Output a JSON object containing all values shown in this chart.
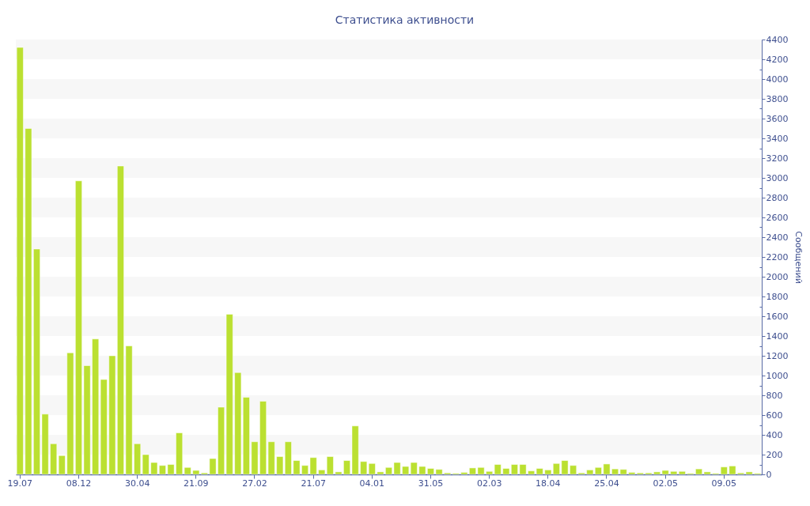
{
  "chart_data": {
    "type": "bar",
    "title": "Статистика активности",
    "ylabel": "Сообщений",
    "categories": [
      "19.07",
      null,
      null,
      null,
      null,
      null,
      null,
      "08.12",
      null,
      null,
      null,
      null,
      null,
      null,
      "30.04",
      null,
      null,
      null,
      null,
      null,
      null,
      "21.09",
      null,
      null,
      null,
      null,
      null,
      null,
      "27.02",
      null,
      null,
      null,
      null,
      null,
      null,
      "21.07",
      null,
      null,
      null,
      null,
      null,
      null,
      "04.01",
      null,
      null,
      null,
      null,
      null,
      null,
      "31.05",
      null,
      null,
      null,
      null,
      null,
      null,
      "02.03",
      null,
      null,
      null,
      null,
      null,
      null,
      "18.04",
      null,
      null,
      null,
      null,
      null,
      null,
      "25.04",
      null,
      null,
      null,
      null,
      null,
      null,
      "02.05",
      null,
      null,
      null,
      null,
      null,
      null,
      "09.05",
      null,
      null,
      null,
      null
    ],
    "values": [
      4320,
      3500,
      2280,
      610,
      310,
      190,
      1230,
      2970,
      1100,
      1370,
      960,
      1200,
      3120,
      1300,
      310,
      200,
      120,
      90,
      100,
      420,
      70,
      40,
      15,
      160,
      680,
      1620,
      1030,
      780,
      330,
      740,
      330,
      180,
      330,
      140,
      90,
      170,
      45,
      180,
      25,
      140,
      490,
      130,
      110,
      25,
      70,
      120,
      80,
      120,
      80,
      60,
      50,
      15,
      10,
      20,
      65,
      70,
      30,
      100,
      60,
      100,
      100,
      35,
      60,
      45,
      110,
      140,
      90,
      15,
      45,
      70,
      105,
      55,
      50,
      20,
      15,
      15,
      25,
      40,
      30,
      30,
      10,
      55,
      25,
      10,
      75,
      85,
      15,
      25,
      10
    ],
    "color": "#bbe031",
    "ylim": [
      0,
      4400
    ],
    "yticks": [
      0,
      {
        "value": 100,
        "label": null
      },
      200,
      {
        "value": 300,
        "label": null
      },
      400,
      {
        "value": 500,
        "label": null
      },
      600,
      {
        "value": 700,
        "label": null
      },
      800,
      {
        "value": 900,
        "label": null
      },
      1000,
      {
        "value": 1100,
        "label": null
      },
      1200,
      {
        "value": 1300,
        "label": null
      },
      1400,
      {
        "value": 1500,
        "label": null
      },
      1600,
      {
        "value": 1700,
        "label": null
      },
      1800,
      {
        "value": 1900,
        "label": null
      },
      2000,
      {
        "value": 2100,
        "label": null
      },
      2200,
      {
        "value": 2300,
        "label": null
      },
      2400,
      {
        "value": 2500,
        "label": null
      },
      2600,
      {
        "value": 2700,
        "label": null
      },
      2800,
      {
        "value": 2900,
        "label": null
      },
      3000,
      {
        "value": 3100,
        "label": null
      },
      3200,
      {
        "value": 3300,
        "label": null
      },
      3400,
      {
        "value": 3500,
        "label": null
      },
      3600,
      {
        "value": 3700,
        "label": null
      },
      3800,
      {
        "value": 3900,
        "label": null
      },
      4000,
      {
        "value": 4100,
        "label": null
      },
      4200,
      {
        "value": 4300,
        "label": null
      },
      4400
    ],
    "bands": [
      {
        "axis": "y",
        "from": 200,
        "to": 400,
        "color": "#f7f7f7"
      },
      {
        "axis": "y",
        "from": 600,
        "to": 800,
        "color": "#f7f7f7"
      },
      {
        "axis": "y",
        "from": 1000,
        "to": 1200,
        "color": "#f7f7f7"
      },
      {
        "axis": "y",
        "from": 1400,
        "to": 1600,
        "color": "#f7f7f7"
      },
      {
        "axis": "y",
        "from": 1800,
        "to": 2000,
        "color": "#f7f7f7"
      },
      {
        "axis": "y",
        "from": 2200,
        "to": 2400,
        "color": "#f7f7f7"
      },
      {
        "axis": "y",
        "from": 2600,
        "to": 2800,
        "color": "#f7f7f7"
      },
      {
        "axis": "y",
        "from": 3000,
        "to": 3200,
        "color": "#f7f7f7"
      },
      {
        "axis": "y",
        "from": 3400,
        "to": 3600,
        "color": "#f7f7f7"
      },
      {
        "axis": "y",
        "from": 3800,
        "to": 4000,
        "color": "#f7f7f7"
      },
      {
        "axis": "y",
        "from": 4200,
        "to": 4400,
        "color": "#f7f7f7"
      }
    ]
  }
}
